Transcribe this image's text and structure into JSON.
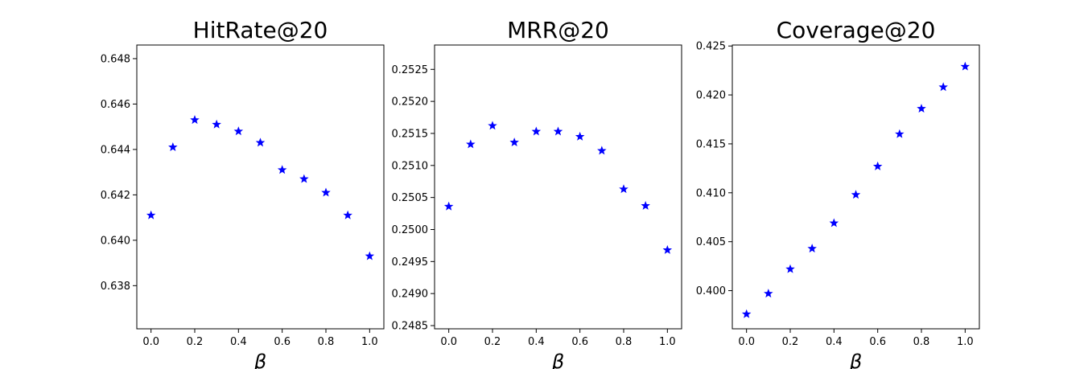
{
  "colors": {
    "marker": "#0000ff",
    "axes": "#000000",
    "background": "#ffffff"
  },
  "chart_data": [
    {
      "type": "scatter",
      "marker": "star",
      "title": "HitRate@20",
      "xlabel": "β",
      "ylabel": "",
      "grid": false,
      "xlim": [
        -0.065,
        1.065
      ],
      "ylim": [
        0.6361,
        0.6486
      ],
      "xticks": [
        "0.0",
        "0.2",
        "0.4",
        "0.6",
        "0.8",
        "1.0"
      ],
      "yticks": [
        "0.638",
        "0.640",
        "0.642",
        "0.644",
        "0.646",
        "0.648"
      ],
      "series": [
        {
          "x": [
            0.0,
            0.1,
            0.2,
            0.3,
            0.4,
            0.5,
            0.6,
            0.7,
            0.8,
            0.9,
            1.0
          ],
          "y": [
            0.6411,
            0.6441,
            0.6453,
            0.6451,
            0.6448,
            0.6443,
            0.6431,
            0.6427,
            0.6421,
            0.6411,
            0.6393
          ]
        }
      ]
    },
    {
      "type": "scatter",
      "marker": "star",
      "title": "MRR@20",
      "xlabel": "β",
      "ylabel": "",
      "grid": false,
      "xlim": [
        -0.065,
        1.065
      ],
      "ylim": [
        0.24845,
        0.25288
      ],
      "xticks": [
        "0.0",
        "0.2",
        "0.4",
        "0.6",
        "0.8",
        "1.0"
      ],
      "yticks": [
        "0.2485",
        "0.2490",
        "0.2495",
        "0.2500",
        "0.2505",
        "0.2510",
        "0.2515",
        "0.2520",
        "0.2525"
      ],
      "series": [
        {
          "x": [
            0.0,
            0.1,
            0.2,
            0.3,
            0.4,
            0.5,
            0.6,
            0.7,
            0.8,
            0.9,
            1.0
          ],
          "y": [
            0.25036,
            0.25133,
            0.25162,
            0.25136,
            0.25153,
            0.25153,
            0.25145,
            0.25123,
            0.25063,
            0.25037,
            0.24968
          ]
        }
      ]
    },
    {
      "type": "scatter",
      "marker": "star",
      "title": "Coverage@20",
      "xlabel": "β",
      "ylabel": "",
      "grid": false,
      "xlim": [
        -0.065,
        1.065
      ],
      "ylim": [
        0.3961,
        0.4251
      ],
      "xticks": [
        "0.0",
        "0.2",
        "0.4",
        "0.6",
        "0.8",
        "1.0"
      ],
      "yticks": [
        "0.400",
        "0.405",
        "0.410",
        "0.415",
        "0.420",
        "0.425"
      ],
      "series": [
        {
          "x": [
            0.0,
            0.1,
            0.2,
            0.3,
            0.4,
            0.5,
            0.6,
            0.7,
            0.8,
            0.9,
            1.0
          ],
          "y": [
            0.3976,
            0.3997,
            0.4022,
            0.4043,
            0.4069,
            0.4098,
            0.4127,
            0.416,
            0.4186,
            0.4208,
            0.4229
          ]
        }
      ]
    }
  ]
}
